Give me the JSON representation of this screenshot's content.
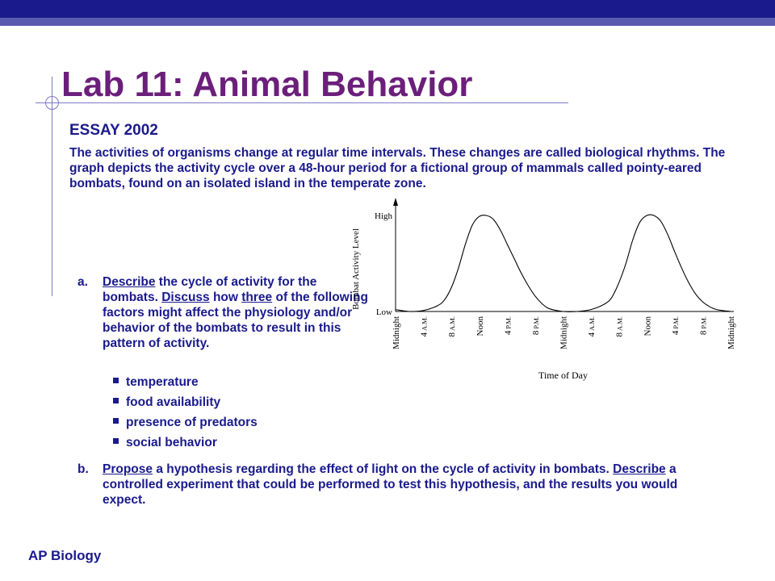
{
  "slide": {
    "title": "Lab 11: Animal Behavior",
    "subtitle": "ESSAY 2002",
    "intro": "The activities of organisms change at regular time intervals. These changes are called biological rhythms. The graph depicts the activity cycle over a 48-hour period for a fictional group of mammals called pointy-eared bombats, found on an isolated island in the temperate zone.",
    "question_a": {
      "label": "a.",
      "verb1": "Describe",
      "text1": " the cycle of activity for the bombats. ",
      "verb2": "Discuss",
      "text2": " how ",
      "word3": "three",
      "text3": " of the following factors might affect the physiology and/or behavior of the bombats to result in this pattern of activity."
    },
    "factors": [
      "temperature",
      "food availability",
      "presence of predators",
      "social behavior"
    ],
    "question_b": {
      "label": "b.",
      "verb1": "Propose",
      "text1": " a hypothesis regarding the effect of light on the cycle of activity in bombats. ",
      "verb2": "Describe",
      "text2": " a controlled experiment that could be performed to test this hypothesis, and the results you would expect."
    },
    "footer": "AP Biology"
  },
  "colors": {
    "title": "#6b1f7a",
    "text": "#1a1a8c",
    "top_bar": "#1a1a8c",
    "top_bar_light": "#5a5ab0",
    "accent_lines": "#7a7ac8"
  },
  "chart_data": {
    "type": "line",
    "title": "",
    "xlabel": "Time of Day",
    "ylabel": "Bombat Activity Level",
    "y_tick_labels": [
      "High",
      "Low"
    ],
    "x_tick_labels": [
      {
        "main": "Midnight",
        "suffix": ""
      },
      {
        "main": "4",
        "suffix": "A.M."
      },
      {
        "main": "8",
        "suffix": "A.M."
      },
      {
        "main": "Noon",
        "suffix": ""
      },
      {
        "main": "4",
        "suffix": "P.M."
      },
      {
        "main": "8",
        "suffix": "P.M."
      },
      {
        "main": "Midnight",
        "suffix": ""
      },
      {
        "main": "4",
        "suffix": "A.M."
      },
      {
        "main": "8",
        "suffix": "A.M."
      },
      {
        "main": "Noon",
        "suffix": ""
      },
      {
        "main": "4",
        "suffix": "P.M."
      },
      {
        "main": "8",
        "suffix": "P.M."
      },
      {
        "main": "Midnight",
        "suffix": ""
      }
    ],
    "x_hours": [
      0,
      4,
      8,
      12,
      16,
      20,
      24,
      28,
      32,
      36,
      40,
      44,
      48
    ],
    "xlim": [
      0,
      48
    ],
    "ylim": [
      0,
      1
    ],
    "series": [
      {
        "x": [
          0,
          2,
          4,
          6,
          7,
          8,
          9,
          10,
          11,
          12,
          13,
          14,
          15,
          16,
          17,
          18,
          19,
          20,
          21,
          22,
          24,
          26,
          28,
          30,
          31,
          32,
          33,
          34,
          35,
          36,
          37,
          38,
          39,
          40,
          41,
          42,
          43,
          44,
          45,
          46,
          48
        ],
        "y": [
          0.02,
          0.0,
          0.01,
          0.06,
          0.12,
          0.25,
          0.45,
          0.7,
          0.9,
          0.99,
          1.0,
          0.96,
          0.85,
          0.7,
          0.55,
          0.4,
          0.27,
          0.16,
          0.08,
          0.03,
          0.0,
          0.0,
          0.02,
          0.08,
          0.15,
          0.3,
          0.5,
          0.75,
          0.93,
          1.0,
          1.0,
          0.94,
          0.8,
          0.62,
          0.45,
          0.3,
          0.18,
          0.1,
          0.05,
          0.02,
          0.0
        ]
      }
    ],
    "grid": false
  }
}
